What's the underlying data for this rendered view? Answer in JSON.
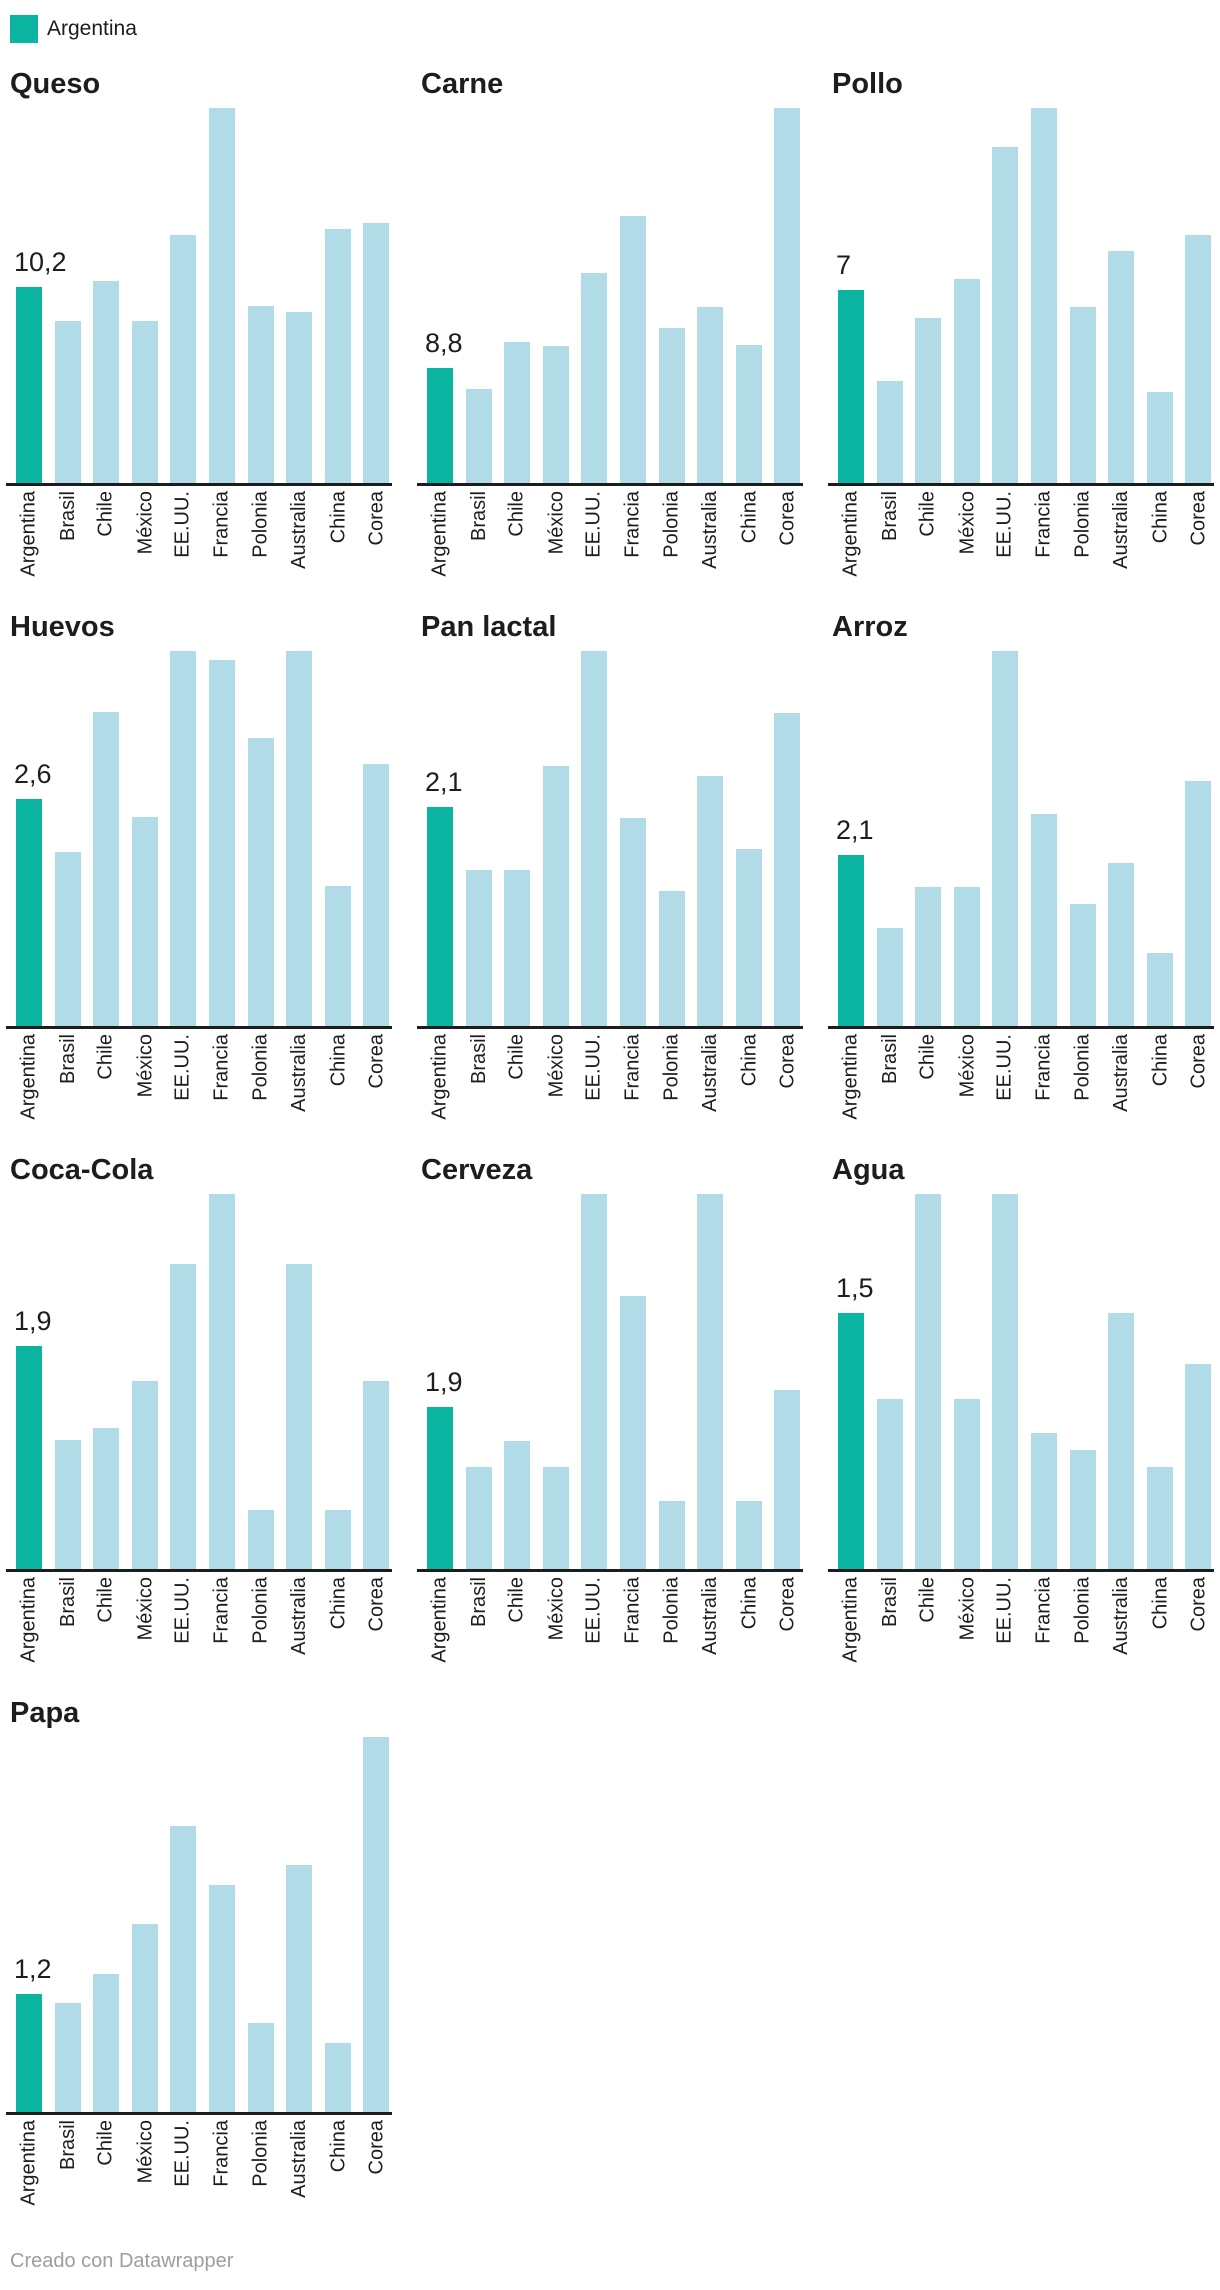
{
  "legend": {
    "label": "Argentina"
  },
  "footer": {
    "credit": "Creado con Datawrapper"
  },
  "colors": {
    "highlight": "#0CB5A1",
    "base": "#B0DBE7",
    "axis": "#1D1D1D",
    "text": "#1D1D1D",
    "muted": "#9E9E9E"
  },
  "chart_data": {
    "type": "bar",
    "note": "small multiples; prices in USD, Argentina highlighted; y-axis hidden, bars scaled to panel max",
    "categories": [
      "Argentina",
      "Brasil",
      "Chile",
      "México",
      "EE.UU.",
      "Francia",
      "Polonia",
      "Australia",
      "China",
      "Corea"
    ],
    "highlight_category": "Argentina",
    "legend_position": "top-left",
    "grid": "off",
    "panels": [
      {
        "title": "Queso",
        "value_label": "10,2",
        "values": [
          10.2,
          8.4,
          10.5,
          8.4,
          12.9,
          19.5,
          9.2,
          8.9,
          13.2,
          13.5
        ]
      },
      {
        "title": "Carne",
        "value_label": "8,8",
        "values": [
          8.8,
          7.2,
          10.8,
          10.5,
          16.1,
          20.5,
          11.9,
          13.5,
          10.6,
          28.8
        ]
      },
      {
        "title": "Pollo",
        "value_label": "7",
        "values": [
          7.0,
          3.7,
          6.0,
          7.4,
          12.2,
          13.6,
          6.4,
          8.4,
          3.3,
          9.0
        ]
      },
      {
        "title": "Huevos",
        "value_label": "2,6",
        "values": [
          2.6,
          2.0,
          3.6,
          2.4,
          4.3,
          4.2,
          3.3,
          4.3,
          1.6,
          3.0
        ]
      },
      {
        "title": "Pan lactal",
        "value_label": "2,1",
        "values": [
          2.1,
          1.5,
          1.5,
          2.5,
          3.6,
          2.0,
          1.3,
          2.4,
          1.7,
          3.0
        ]
      },
      {
        "title": "Arroz",
        "value_label": "2,1",
        "values": [
          2.1,
          1.2,
          1.7,
          1.7,
          4.6,
          2.6,
          1.5,
          2.0,
          0.9,
          3.0
        ]
      },
      {
        "title": "Coca-Cola",
        "value_label": "1,9",
        "values": [
          1.9,
          1.1,
          1.2,
          1.6,
          2.6,
          3.2,
          0.5,
          2.6,
          0.5,
          1.6
        ]
      },
      {
        "title": "Cerveza",
        "value_label": "1,9",
        "values": [
          1.9,
          1.2,
          1.5,
          1.2,
          4.4,
          3.2,
          0.8,
          4.4,
          0.8,
          2.1
        ]
      },
      {
        "title": "Agua",
        "value_label": "1,5",
        "values": [
          1.5,
          1.0,
          2.2,
          1.0,
          2.2,
          0.8,
          0.7,
          1.5,
          0.6,
          1.2
        ]
      },
      {
        "title": "Papa",
        "value_label": "1,2",
        "values": [
          1.2,
          1.1,
          1.4,
          1.9,
          2.9,
          2.3,
          0.9,
          2.5,
          0.7,
          3.8
        ]
      }
    ]
  }
}
